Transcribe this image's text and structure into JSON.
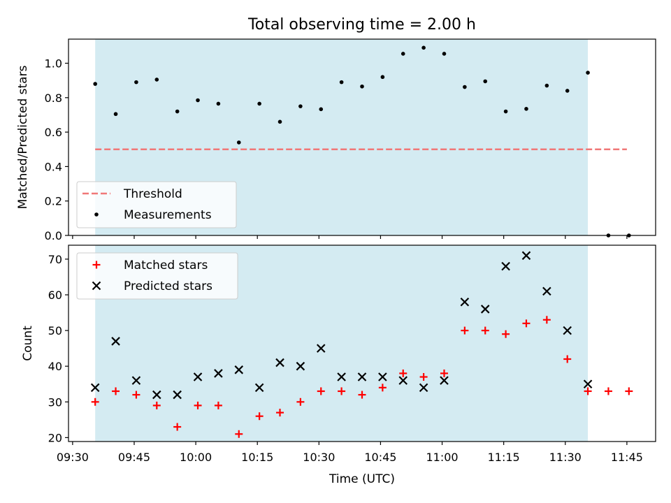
{
  "chart_data": [
    {
      "type": "scatter",
      "title": "Total observing time = 2.00 h",
      "ylabel": "Matched/Predicted stars",
      "xlabel": "",
      "xlim": [
        "09:29",
        "11:52"
      ],
      "ylim": [
        0,
        1.14
      ],
      "yticks": [
        0.0,
        0.2,
        0.4,
        0.6,
        0.8,
        1.0
      ],
      "ytick_labels": [
        "0.0",
        "0.2",
        "0.4",
        "0.6",
        "0.8",
        "1.0"
      ],
      "shaded_interval": [
        "09:35.5",
        "11:35.5"
      ],
      "shade_color": "#d4ebf2",
      "legend_position": "lower-left",
      "series": [
        {
          "name": "Threshold",
          "kind": "dashed-line",
          "color": "#f07878",
          "x": [
            "09:35.5",
            "11:45"
          ],
          "y": [
            0.5,
            0.5
          ]
        },
        {
          "name": "Measurements",
          "kind": "dot",
          "color": "#000000",
          "x": [
            "09:35.5",
            "09:40.5",
            "09:45.5",
            "09:50.5",
            "09:55.5",
            "10:00.5",
            "10:05.5",
            "10:10.5",
            "10:15.5",
            "10:20.5",
            "10:25.5",
            "10:30.5",
            "10:35.5",
            "10:40.5",
            "10:45.5",
            "10:50.5",
            "10:55.5",
            "11:00.5",
            "11:05.5",
            "11:10.5",
            "11:15.5",
            "11:20.5",
            "11:25.5",
            "11:30.5",
            "11:35.5",
            "11:40.5",
            "11:45.5"
          ],
          "y": [
            0.88,
            0.705,
            0.89,
            0.905,
            0.72,
            0.785,
            0.765,
            0.54,
            0.765,
            0.66,
            0.75,
            0.733,
            0.89,
            0.865,
            0.92,
            1.055,
            1.09,
            1.055,
            0.862,
            0.895,
            0.72,
            0.735,
            0.87,
            0.84,
            0.945,
            0.0,
            0.0
          ]
        }
      ]
    },
    {
      "type": "scatter",
      "title": "",
      "ylabel": "Count",
      "xlabel": "Time (UTC)",
      "xlim": [
        "09:29",
        "11:52"
      ],
      "ylim": [
        18.9,
        73.9
      ],
      "yticks": [
        20,
        30,
        40,
        50,
        60,
        70
      ],
      "ytick_labels": [
        "20",
        "30",
        "40",
        "50",
        "60",
        "70"
      ],
      "xticks": [
        "09:30",
        "09:45",
        "10:00",
        "10:15",
        "10:30",
        "10:45",
        "11:00",
        "11:15",
        "11:30",
        "11:45"
      ],
      "xtick_labels": [
        "09:30",
        "09:45",
        "10:00",
        "10:15",
        "10:30",
        "10:45",
        "11:00",
        "11:15",
        "11:30",
        "11:45"
      ],
      "shaded_interval": [
        "09:35.5",
        "11:35.5"
      ],
      "shade_color": "#d4ebf2",
      "legend_position": "upper-left",
      "series": [
        {
          "name": "Matched stars",
          "kind": "plus",
          "color": "#ff0000",
          "x": [
            "09:35.5",
            "09:40.5",
            "09:45.5",
            "09:50.5",
            "09:55.5",
            "10:00.5",
            "10:05.5",
            "10:10.5",
            "10:15.5",
            "10:20.5",
            "10:25.5",
            "10:30.5",
            "10:35.5",
            "10:40.5",
            "10:45.5",
            "10:50.5",
            "10:55.5",
            "11:00.5",
            "11:05.5",
            "11:10.5",
            "11:15.5",
            "11:20.5",
            "11:25.5",
            "11:30.5",
            "11:35.5",
            "11:40.5",
            "11:45.5"
          ],
          "y": [
            30,
            33,
            32,
            29,
            23,
            29,
            29,
            21,
            26,
            27,
            30,
            33,
            33,
            32,
            34,
            38,
            37,
            38,
            50,
            50,
            49,
            52,
            53,
            42,
            33,
            33,
            33
          ]
        },
        {
          "name": "Predicted stars",
          "kind": "x",
          "color": "#000000",
          "x": [
            "09:35.5",
            "09:40.5",
            "09:45.5",
            "09:50.5",
            "09:55.5",
            "10:00.5",
            "10:05.5",
            "10:10.5",
            "10:15.5",
            "10:20.5",
            "10:25.5",
            "10:30.5",
            "10:35.5",
            "10:40.5",
            "10:45.5",
            "10:50.5",
            "10:55.5",
            "11:00.5",
            "11:05.5",
            "11:10.5",
            "11:15.5",
            "11:20.5",
            "11:25.5",
            "11:30.5",
            "11:35.5"
          ],
          "y": [
            34,
            47,
            36,
            32,
            32,
            37,
            38,
            39,
            34,
            41,
            40,
            45,
            37,
            37,
            37,
            36,
            34,
            36,
            58,
            56,
            68,
            71,
            61,
            50,
            35
          ]
        }
      ]
    }
  ]
}
